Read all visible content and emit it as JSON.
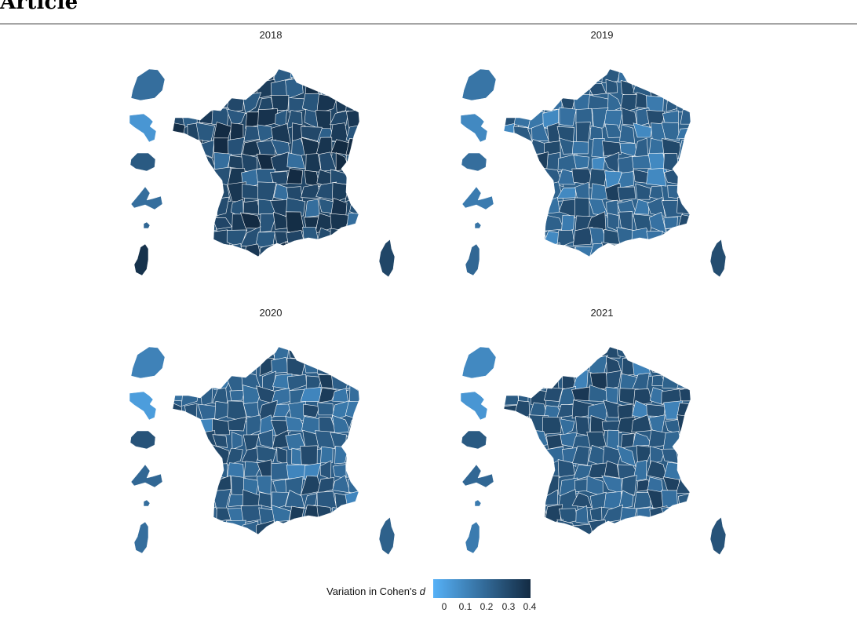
{
  "header": {
    "title": "Article"
  },
  "legend": {
    "title_prefix": "Variation in Cohen's ",
    "title_var": "d",
    "ticks": [
      "0",
      "0.1",
      "0.2",
      "0.3",
      "0.4"
    ],
    "low_color": "#56b1f7",
    "high_color": "#132b43",
    "range": [
      0,
      0.4
    ]
  },
  "chart_data": {
    "type": "heatmap",
    "description_kind": "choropleth",
    "facets": [
      {
        "title": "2018",
        "overall_level": 0.32,
        "overseas_levels": [
          0.2,
          0.08,
          0.26,
          0.2,
          0.22,
          0.38
        ],
        "corsica_level": 0.32
      },
      {
        "title": "2019",
        "overall_level": 0.24,
        "overseas_levels": [
          0.18,
          0.12,
          0.2,
          0.16,
          0.18,
          0.22
        ],
        "corsica_level": 0.3
      },
      {
        "title": "2020",
        "overall_level": 0.25,
        "overseas_levels": [
          0.14,
          0.06,
          0.28,
          0.22,
          0.2,
          0.2
        ],
        "corsica_level": 0.24
      },
      {
        "title": "2021",
        "overall_level": 0.26,
        "overseas_levels": [
          0.12,
          0.08,
          0.26,
          0.22,
          0.16,
          0.16
        ],
        "corsica_level": 0.28
      }
    ]
  }
}
